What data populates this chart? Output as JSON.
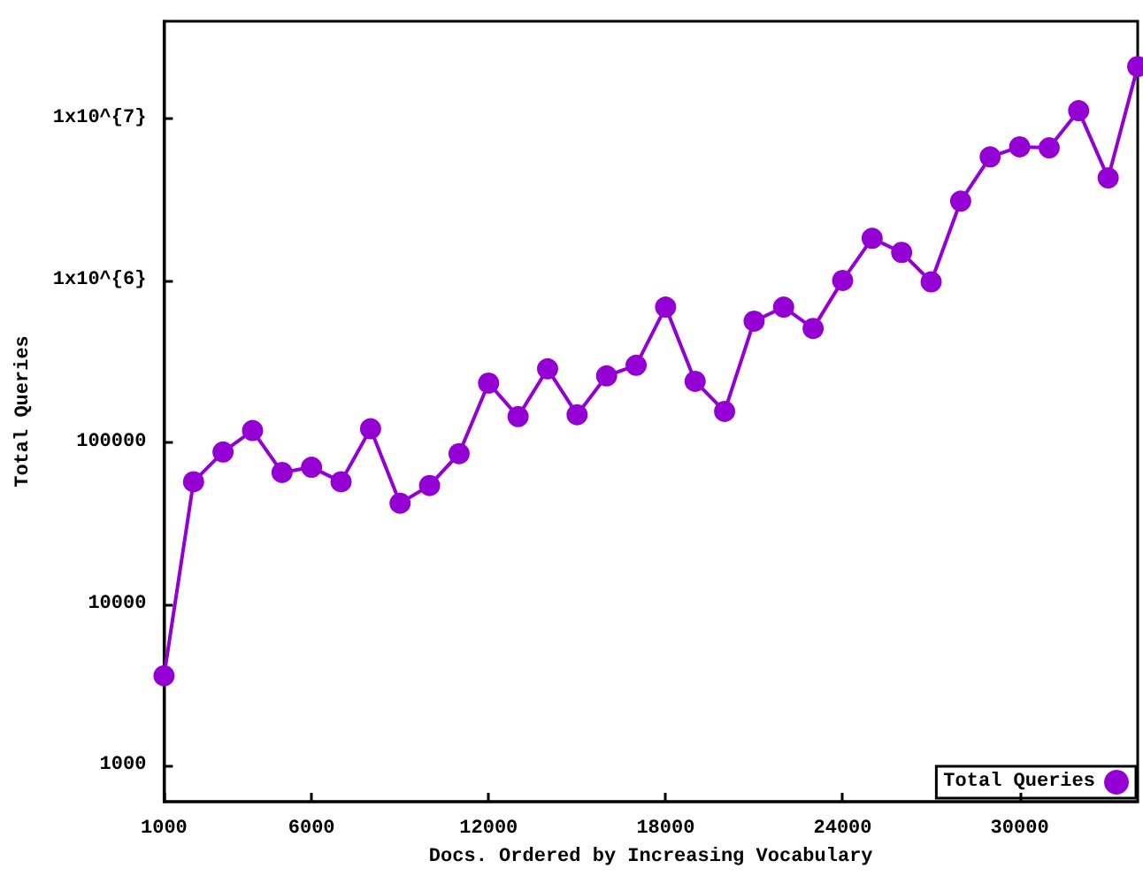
{
  "chart_data": {
    "type": "line",
    "xlabel": "Docs. Ordered by Increasing Vocabulary",
    "ylabel": "Total Queries",
    "x": [
      1000,
      2000,
      3000,
      4000,
      5000,
      6000,
      7000,
      8000,
      9000,
      10000,
      11000,
      12000,
      13000,
      14000,
      15000,
      16000,
      17000,
      18000,
      19000,
      20000,
      21000,
      22000,
      23000,
      24000,
      25000,
      26000,
      27000,
      28000,
      29000,
      30000,
      31000,
      32000,
      33000,
      34000
    ],
    "series": [
      {
        "name": "Total Queries",
        "color": "#9400d3",
        "values": [
          3600,
          57000,
          87000,
          118000,
          65000,
          70000,
          57000,
          121000,
          42000,
          54000,
          85000,
          232000,
          144000,
          284000,
          148000,
          257000,
          299000,
          684000,
          238000,
          155000,
          560000,
          684000,
          505000,
          1000000,
          1820000,
          1490000,
          980000,
          3090000,
          5800000,
          6700000,
          6600000,
          11200000,
          4300000,
          21000000
        ]
      }
    ],
    "xlim": [
      1000,
      34000
    ],
    "xticks": [
      1000,
      6000,
      12000,
      18000,
      24000,
      30000
    ],
    "ylim": [
      600,
      40000000
    ],
    "yticks": [
      1000,
      10000,
      100000,
      {
        "value": 1000000,
        "label": "1x10^{6}"
      },
      {
        "value": 10000000,
        "label": "1x10^{7}"
      }
    ],
    "log": "y",
    "grid": false,
    "legend": "bottom right",
    "marker": "circle",
    "line_style": "solid"
  }
}
